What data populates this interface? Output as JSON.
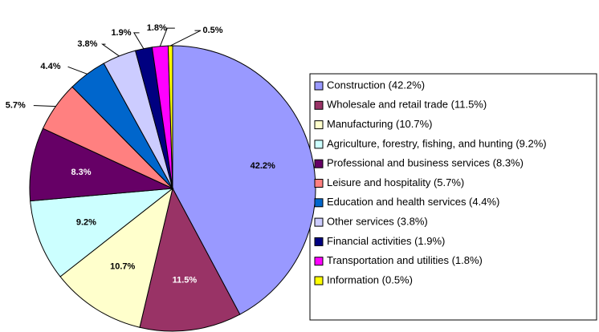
{
  "chart_data": {
    "type": "pie",
    "categories": [
      "Construction (42.2%)",
      "Wholesale and retail trade (11.5%)",
      "Manufacturing (10.7%)",
      "Agriculture, forestry, fishing, and hunting (9.2%)",
      "Professional and business services (8.3%)",
      "Leisure and hospitality (5.7%)",
      "Education and health services (4.4%)",
      "Other services (3.8%)",
      "Financial activities (1.9%)",
      "Transportation and utilities (1.8%)",
      "Information (0.5%)"
    ],
    "values": [
      42.2,
      11.5,
      10.7,
      9.2,
      8.3,
      5.7,
      4.4,
      3.8,
      1.9,
      1.8,
      0.5
    ],
    "value_labels": [
      "42.2%",
      "11.5%",
      "10.7%",
      "9.2%",
      "8.3%",
      "5.7%",
      "4.4%",
      "3.8%",
      "1.9%",
      "1.8%",
      "0.5%"
    ],
    "colors": [
      "#9999ff",
      "#993366",
      "#ffffcc",
      "#ccffff",
      "#660066",
      "#ff8080",
      "#0066cc",
      "#ccccff",
      "#000080",
      "#ff00ff",
      "#ffff00"
    ],
    "legend": "right"
  }
}
